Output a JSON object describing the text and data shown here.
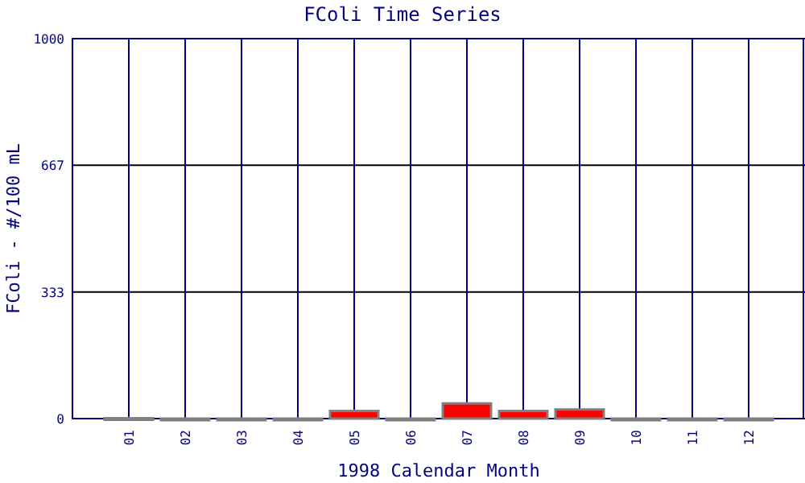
{
  "chart_data": {
    "type": "bar",
    "title": "FColi Time Series",
    "xlabel": "1998 Calendar Month",
    "ylabel": "FColi - #/100 mL",
    "categories": [
      "01",
      "02",
      "03",
      "04",
      "05",
      "06",
      "07",
      "08",
      "09",
      "10",
      "11",
      "12"
    ],
    "values": [
      1,
      0,
      0,
      0,
      20,
      0,
      40,
      20,
      24,
      0,
      0,
      0
    ],
    "color": "#ff0000",
    "ylim": [
      0,
      1000
    ],
    "yticks": [
      0,
      333,
      667,
      1000
    ],
    "grid": true
  }
}
